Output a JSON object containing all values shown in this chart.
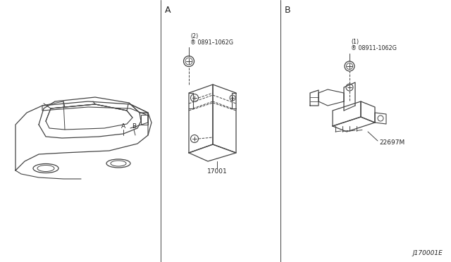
{
  "bg_color": "#ffffff",
  "line_color": "#444444",
  "text_color": "#222222",
  "fig_width": 6.4,
  "fig_height": 3.72,
  "dpi": 100,
  "section_a_label": "A",
  "section_b_label": "B",
  "part_a_number": "17001",
  "part_b_number": "22697M",
  "bolt_a_label": "® 0891–1062G",
  "bolt_a_qty": "(2)",
  "bolt_b_label": "® 08911-1062G",
  "bolt_b_qty": "(1)",
  "diagram_ref": "J170001E"
}
